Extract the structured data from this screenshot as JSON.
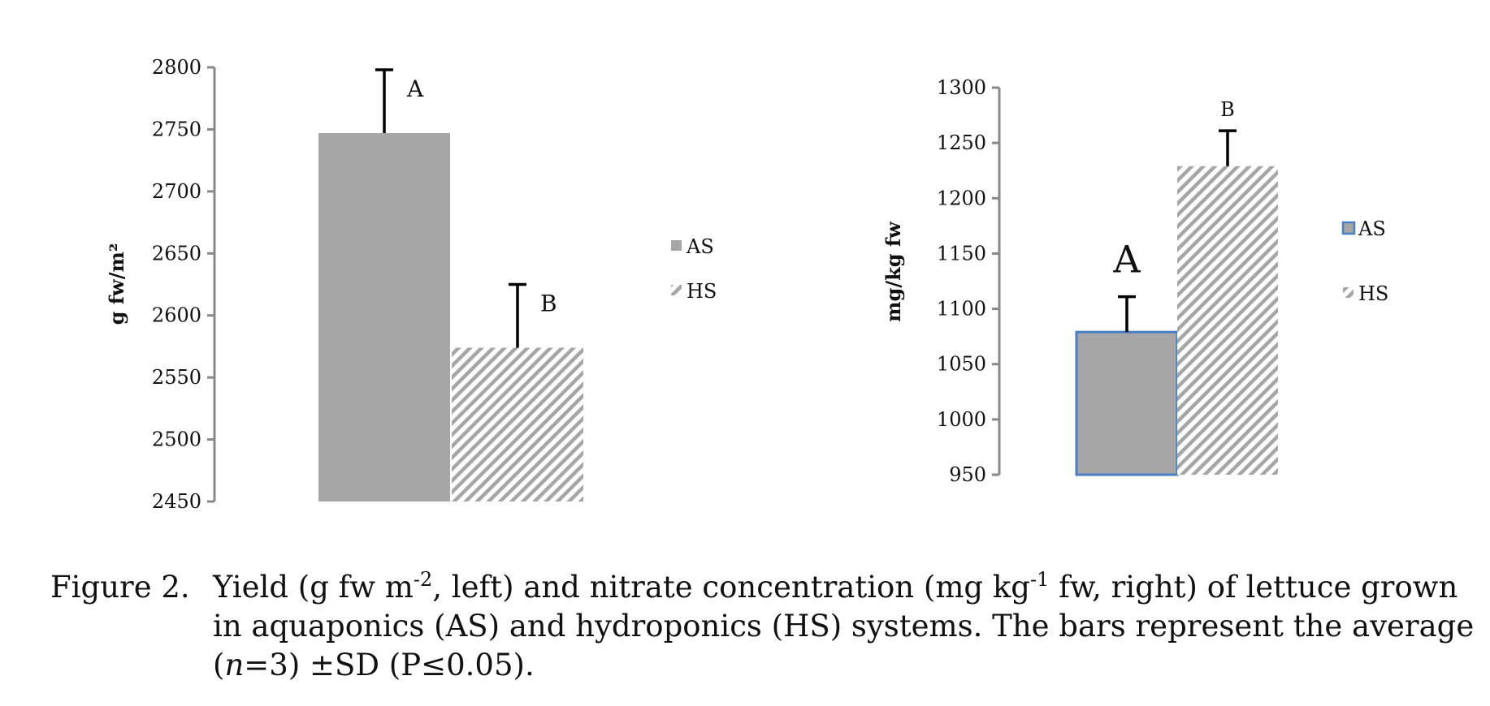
{
  "chart_data": [
    {
      "type": "bar",
      "ylabel": "g fw/m²",
      "ylim": [
        2450,
        2800
      ],
      "yticks": [
        2450,
        2500,
        2550,
        2600,
        2650,
        2700,
        2750,
        2800
      ],
      "grid": false,
      "legend": "right",
      "series": [
        {
          "name": "AS",
          "value": 2747,
          "error": 51,
          "letter": "A",
          "fill": "solid"
        },
        {
          "name": "HS",
          "value": 2574,
          "error": 51,
          "letter": "B",
          "fill": "hatched"
        }
      ]
    },
    {
      "type": "bar",
      "ylabel": "mg/kg fw",
      "ylim": [
        950,
        1300
      ],
      "yticks": [
        950,
        1000,
        1050,
        1100,
        1150,
        1200,
        1250,
        1300
      ],
      "grid": false,
      "legend": "right",
      "series": [
        {
          "name": "AS",
          "value": 1079,
          "error": 32,
          "letter": "A",
          "fill": "solid"
        },
        {
          "name": "HS",
          "value": 1229,
          "error": 32,
          "letter": "B",
          "fill": "hatched"
        }
      ]
    }
  ],
  "colors": {
    "bar": "#a6a6a6",
    "axis": "#888888",
    "errorbar": "#000000",
    "outline_right_as": "#4a7ec5"
  },
  "caption": {
    "label": "Figure 2.",
    "text": "Yield (g fw m-2, left) and nitrate concentration (mg kg-1 fw, right) of lettuce grown in aquaponics (AS) and hydroponics (HS) systems. The bars represent the average (n=3) ±SD (P≤0.05).",
    "part1": "Yield (g fw m",
    "sup1": "-2",
    "part2": ", left) and nitrate concentration (mg kg",
    "sup2": "-1",
    "part3": " fw, right) of lettuce grown in aquaponics (AS) and hydroponics (HS) systems. The bars represent the average (",
    "italic": "n",
    "part4": "=3) ±SD (P≤0.05)."
  }
}
